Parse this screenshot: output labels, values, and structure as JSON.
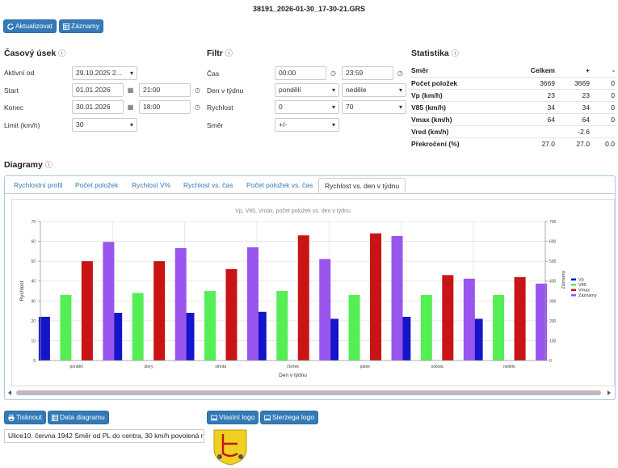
{
  "title": "38191_2026-01-30_17-30-21.GRS",
  "toolbar": {
    "refresh": "Aktualizovat",
    "records": "Záznamy"
  },
  "casovy_usek": {
    "heading": "Časový úsek",
    "aktivni_label": "Aktivní od",
    "aktivni_value": "29.10.2025 2...",
    "start_label": "Start",
    "start_date": "01.01.2026",
    "start_time": "21:00",
    "konec_label": "Konec",
    "konec_date": "30.01.2026",
    "konec_time": "18:00",
    "limit_label": "Limit (km/h)",
    "limit_value": "30"
  },
  "filtr": {
    "heading": "Filtr",
    "cas_label": "Čas",
    "cas_from": "00:00",
    "cas_to": "23:59",
    "den_label": "Den v týdnu",
    "den_from": "pondělí",
    "den_to": "neděle",
    "rychlost_label": "Rychlost",
    "rychlost_from": "0",
    "rychlost_to": "70",
    "smer_label": "Směr",
    "smer_value": "+/-"
  },
  "statistika": {
    "heading": "Statistika",
    "header": [
      "Směr",
      "Celkem",
      "+",
      "-"
    ],
    "rows": [
      [
        "Počet položek",
        "3669",
        "3669",
        "0"
      ],
      [
        "Vp (km/h)",
        "23",
        "23",
        "0"
      ],
      [
        "V85 (km/h)",
        "34",
        "34",
        "0"
      ],
      [
        "Vmax (km/h)",
        "64",
        "64",
        "0"
      ],
      [
        "Vred (km/h)",
        "",
        "-2.6",
        ""
      ],
      [
        "Překročení (%)",
        "27.0",
        "27.0",
        "0.0"
      ]
    ]
  },
  "diagramy": {
    "heading": "Diagramy",
    "tabs": [
      "Rychlostní profil",
      "Počet položek",
      "Rychlost V%",
      "Rychlost vs. čas",
      "Počet položek vs. čas",
      "Rychlost vs. den v týdnu"
    ]
  },
  "chart_data": {
    "type": "bar",
    "title": "Vp, V85, Vmax, počet položek vs. den v týdnu",
    "xlabel": "Den v týdnu",
    "ylabel": "Rychlost",
    "y2label": "Záznamy",
    "ylim": [
      0,
      70
    ],
    "y2lim": [
      0,
      700
    ],
    "yticks": [
      "0",
      "10",
      "20",
      "30",
      "40",
      "50",
      "60",
      "70"
    ],
    "y2ticks": [
      "0",
      "100",
      "200",
      "300",
      "400",
      "500",
      "600",
      "700"
    ],
    "categories": [
      "pondělí",
      "úterý",
      "středa",
      "čtvrtek",
      "pátek",
      "sobota",
      "neděle"
    ],
    "series": [
      {
        "name": "Vp",
        "color": "#1414c8",
        "values": [
          22,
          24,
          24,
          24.5,
          21,
          22,
          21
        ]
      },
      {
        "name": "V85",
        "color": "#55ee55",
        "values": [
          33,
          34,
          35,
          35,
          33,
          33,
          33
        ]
      },
      {
        "name": "Vmax",
        "color": "#c81414",
        "values": [
          50,
          50,
          46,
          63,
          64,
          43,
          42
        ]
      },
      {
        "name": "Záznamy",
        "color": "#9955ee",
        "axis": "right",
        "values": [
          597,
          566,
          570,
          511,
          627,
          412,
          387
        ]
      }
    ],
    "grid": true,
    "legend": "right"
  },
  "bottom": {
    "print": "Tisknout",
    "data": "Data diagramu",
    "own_logo": "Vlastní logo",
    "sierzega_logo": "Sierzega logo",
    "note": "Ulice10. června 1942  Směr od PL do centra, 30 km/h povolená r"
  }
}
